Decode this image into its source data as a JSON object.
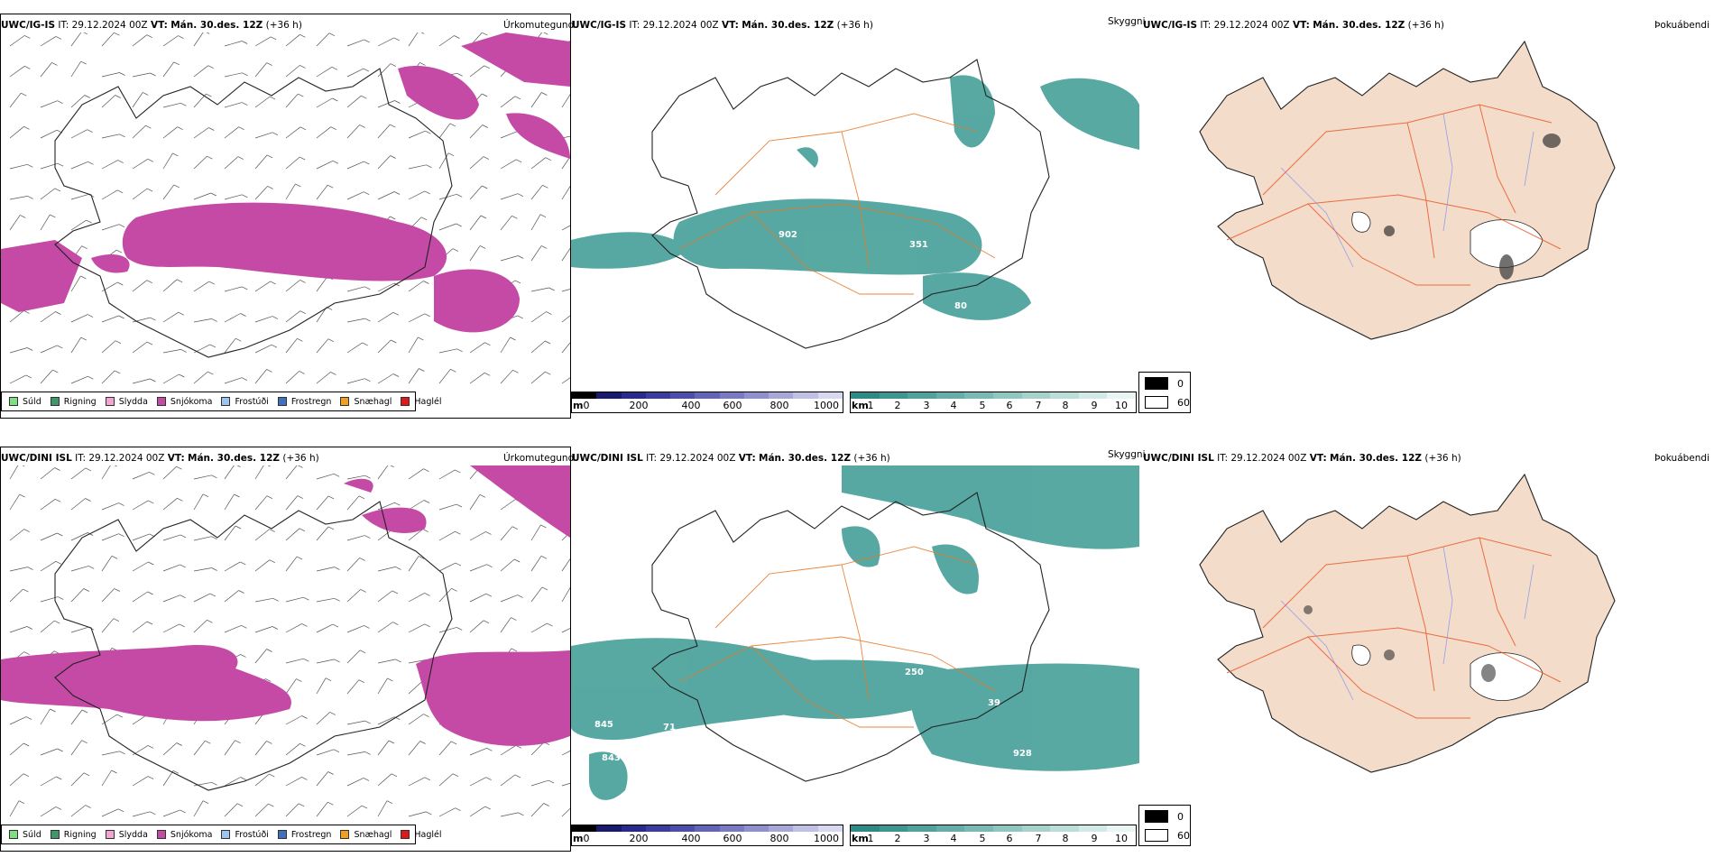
{
  "rows": [
    {
      "model": "UWC/IG-IS",
      "it_label": "IT:",
      "it_value": "29.12.2024 00Z",
      "vt_label": "VT:",
      "vt_value": "Mán. 30.des. 12Z",
      "lead": "(+36 h)",
      "fields": {
        "precip": "Úrkomutegund",
        "visibility": "Skyggni",
        "fog": "Þokuábendi"
      },
      "vis_labels": [
        "902",
        "351",
        "80"
      ]
    },
    {
      "model": "UWC/DINI ISL",
      "it_label": "IT:",
      "it_value": "29.12.2024 00Z",
      "vt_label": "VT:",
      "vt_value": "Mán. 30.des. 12Z",
      "lead": "(+36 h)",
      "fields": {
        "precip": "Úrkomutegund",
        "visibility": "Skyggni",
        "fog": "Þokuábendi"
      },
      "vis_labels": [
        "250",
        "39",
        "845",
        "71",
        "843",
        "928"
      ]
    }
  ],
  "precip_legend": [
    {
      "label": "Súld",
      "color": "#7ee07e"
    },
    {
      "label": "Rigning",
      "color": "#3c9a6a"
    },
    {
      "label": "Slydda",
      "color": "#f2a6d4"
    },
    {
      "label": "Snjókoma",
      "color": "#c44aa6"
    },
    {
      "label": "Frostúði",
      "color": "#9cc4ef"
    },
    {
      "label": "Frostregn",
      "color": "#3f6fbf"
    },
    {
      "label": "Snæhagl",
      "color": "#f0a020"
    },
    {
      "label": "Haglél",
      "color": "#e01818"
    }
  ],
  "vis_m_bar": {
    "unit": "m",
    "ticks": [
      "0",
      "200",
      "400",
      "600",
      "800",
      "1000"
    ]
  },
  "vis_km_bar": {
    "unit": "km",
    "ticks": [
      "1",
      "2",
      "3",
      "4",
      "5",
      "6",
      "7",
      "8",
      "9",
      "10"
    ]
  },
  "fog_legend": [
    "0",
    "60"
  ],
  "colors": {
    "snow": "#c44aa6",
    "visibility": "#3a9a92",
    "land": "#f4dccb",
    "roads": "#e87a2a",
    "rivers": "#7a8ef0"
  }
}
